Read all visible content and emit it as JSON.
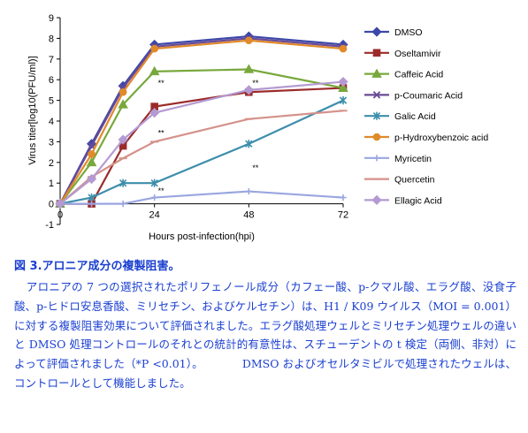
{
  "chart_data": {
    "type": "line",
    "title": "",
    "xlabel": "Hours post-infection(hpi)",
    "ylabel": "Virus titer[log10(PFU/ml)]",
    "x": [
      0,
      8,
      16,
      24,
      48,
      72
    ],
    "x_ticks": [
      "0",
      "24",
      "48",
      "72"
    ],
    "xlim": [
      0,
      72
    ],
    "y_ticks": [
      "-1",
      "0",
      "1",
      "2",
      "3",
      "4",
      "5",
      "6",
      "7",
      "8",
      "9"
    ],
    "ylim": [
      -1,
      9
    ],
    "grid": false,
    "legend_position": "right",
    "series": [
      {
        "name": "DMSO",
        "color": "#3c48a8",
        "marker": "diamond",
        "values": [
          0,
          2.9,
          5.7,
          7.7,
          8.1,
          7.7
        ]
      },
      {
        "name": "Oseltamivir",
        "color": "#9b2b2b",
        "marker": "square",
        "values": [
          0,
          0,
          2.8,
          4.7,
          5.4,
          5.6
        ]
      },
      {
        "name": "Caffeic Acid",
        "color": "#78a83c",
        "marker": "triangle",
        "values": [
          0,
          2.0,
          4.8,
          6.4,
          6.5,
          5.6
        ]
      },
      {
        "name": "p-Coumaric Acid",
        "color": "#6a4a96",
        "marker": "x",
        "values": [
          0,
          2.8,
          5.6,
          7.6,
          8.0,
          7.6
        ]
      },
      {
        "name": "Galic Acid",
        "color": "#3d8eab",
        "marker": "asterisk",
        "values": [
          0,
          0.3,
          1.0,
          1.0,
          2.9,
          5.0
        ]
      },
      {
        "name": "p-Hydroxybenzoic acid",
        "color": "#e08a2a",
        "marker": "circle",
        "values": [
          0,
          2.4,
          5.4,
          7.5,
          7.9,
          7.5
        ]
      },
      {
        "name": "Myricetin",
        "color": "#9aa6e0",
        "marker": "plus",
        "values": [
          0,
          0,
          0,
          0.3,
          0.6,
          0.3
        ]
      },
      {
        "name": "Quercetin",
        "color": "#d4928a",
        "marker": "dash",
        "values": [
          0,
          1.3,
          2.2,
          3.0,
          4.1,
          4.5
        ]
      },
      {
        "name": "Ellagic Acid",
        "color": "#b49ad2",
        "marker": "diamond",
        "values": [
          0,
          1.2,
          3.1,
          4.4,
          5.5,
          5.9
        ]
      }
    ],
    "annotations": [
      {
        "text": "**",
        "x": 24,
        "y": 5.7
      },
      {
        "text": "**",
        "x": 24,
        "y": 3.3
      },
      {
        "text": "**",
        "x": 24,
        "y": 0.5
      },
      {
        "text": "**",
        "x": 48,
        "y": 5.7
      },
      {
        "text": "**",
        "x": 48,
        "y": 1.6
      }
    ]
  },
  "caption": {
    "title": "図 3.アロニア成分の複製阻害。",
    "body": "アロニアの 7 つの選択されたポリフェノール成分（カフェー酸、p-クマル酸、エラグ酸、没食子酸、p-ヒドロ安息香酸、ミリセチン、およびケルセチン）は、H1 / K09 ウイルス（MOI = 0.001）に対する複製阻害効果について評価されました。エラグ酸処理ウェルとミリセチン処理ウェルの違いと DMSO 処理コントロールのそれとの統計的有意性は、スチューデントの t 検定（両側、非対）によって評価されました（*P <0.01）。　　　　DMSO およびオセルタミビルで処理されたウェルは、コントロールとして機能しました。"
  }
}
